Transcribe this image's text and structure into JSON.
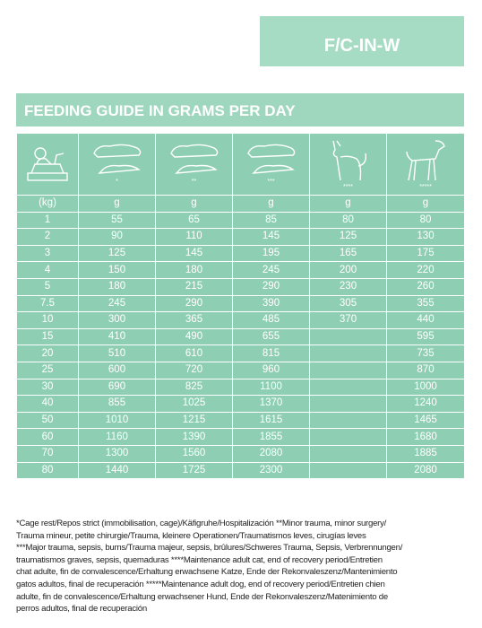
{
  "header": {
    "code": "F/C-IN-W",
    "title": "FEEDING GUIDE IN GRAMS PER DAY"
  },
  "table": {
    "markers": [
      "*",
      "**",
      "***",
      "****",
      "*****"
    ],
    "units": [
      "(kg)",
      "g",
      "g",
      "g",
      "g",
      "g"
    ],
    "rows": [
      [
        1,
        55,
        65,
        85,
        80,
        80
      ],
      [
        2,
        90,
        110,
        145,
        125,
        130
      ],
      [
        3,
        125,
        145,
        195,
        165,
        175
      ],
      [
        4,
        150,
        180,
        245,
        200,
        220
      ],
      [
        5,
        180,
        215,
        290,
        230,
        260
      ],
      [
        7.5,
        245,
        290,
        390,
        305,
        355
      ],
      [
        10,
        300,
        365,
        485,
        370,
        440
      ],
      [
        15,
        410,
        490,
        655,
        null,
        595
      ],
      [
        20,
        510,
        610,
        815,
        null,
        735
      ],
      [
        25,
        600,
        720,
        960,
        null,
        870
      ],
      [
        30,
        690,
        825,
        1100,
        null,
        1000
      ],
      [
        40,
        855,
        1025,
        1370,
        null,
        1240
      ],
      [
        50,
        1010,
        1215,
        1615,
        null,
        1465
      ],
      [
        60,
        1160,
        1390,
        1855,
        null,
        1680
      ],
      [
        70,
        1300,
        1560,
        2080,
        null,
        1885
      ],
      [
        80,
        1440,
        1725,
        2300,
        null,
        2080
      ]
    ]
  },
  "footnote": [
    "*Cage rest/Repos strict (immobilisation, cage)/Käfigruhe/Hospitalización **Minor trauma, minor surgery/",
    "Trauma mineur, petite chirurgie/Trauma, kleinere Operationen/Traumatismos leves, cirugías leves",
    "***Major trauma, sepsis, burns/Trauma majeur, sepsis, brûlures/Schweres Trauma, Sepsis, Verbrennungen/",
    "traumatismos graves, sepsis, quemaduras ****Maintenance adult cat, end of recovery period/Entretien",
    "chat adulte, fin de convalescence/Erhaltung erwachsene Katze, Ende der Rekonvaleszenz/Mantenimiento",
    "gatos adultos, final de recuperación *****Maintenance adult dog, end of recovery period/Entretien chien",
    "adulte, fin de convalescence/Erhaltung erwachsener Hund, Ende der Rekonvaleszenz/Matenimiento de",
    "perros adultos, final de recuperación"
  ]
}
